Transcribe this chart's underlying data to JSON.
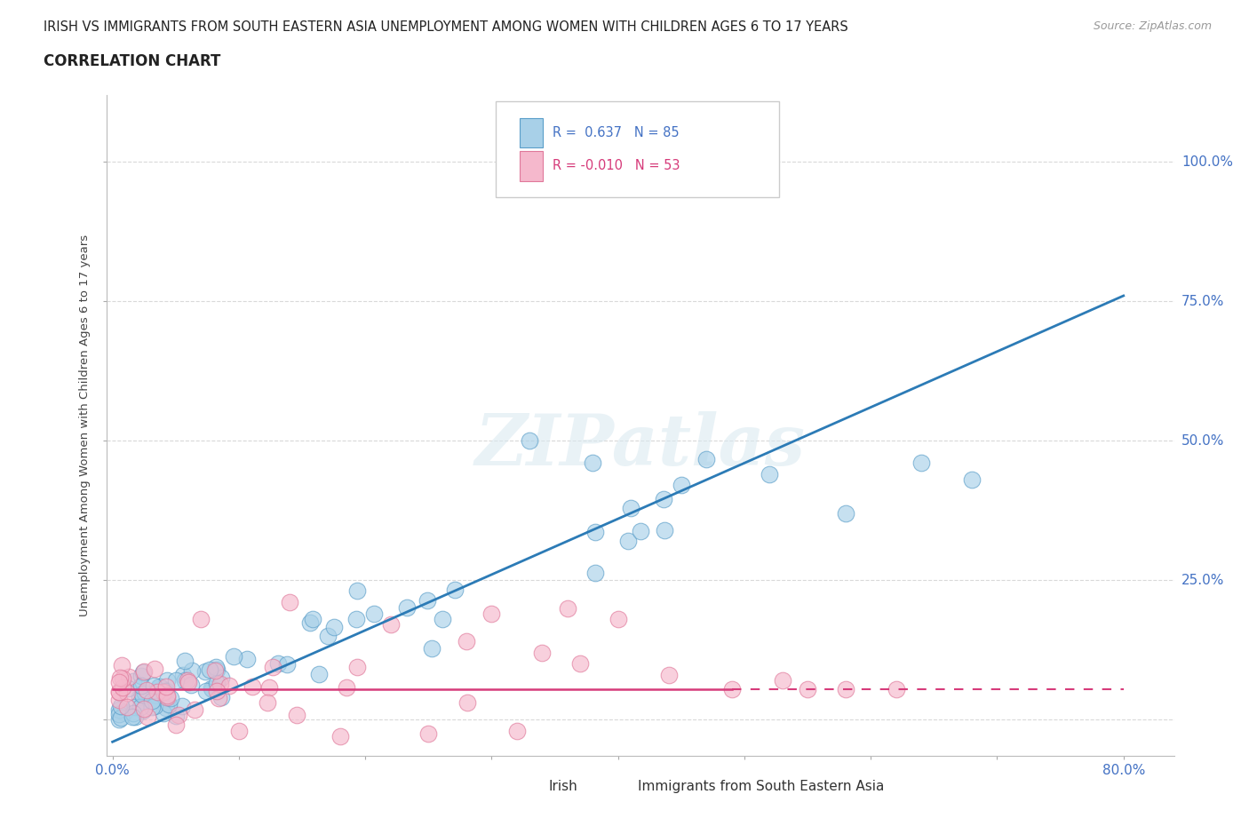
{
  "title_line1": "IRISH VS IMMIGRANTS FROM SOUTH EASTERN ASIA UNEMPLOYMENT AMONG WOMEN WITH CHILDREN AGES 6 TO 17 YEARS",
  "title_line2": "CORRELATION CHART",
  "source_text": "Source: ZipAtlas.com",
  "ylabel": "Unemployment Among Women with Children Ages 6 to 17 years",
  "xlim": [
    -0.005,
    0.84
  ],
  "ylim": [
    -0.065,
    1.12
  ],
  "xtick_positions": [
    0.0,
    0.1,
    0.2,
    0.3,
    0.4,
    0.5,
    0.6,
    0.7,
    0.8
  ],
  "ytick_positions": [
    0.0,
    0.25,
    0.5,
    0.75,
    1.0
  ],
  "ytick_labels": [
    "0.0%",
    "25.0%",
    "50.0%",
    "75.0%",
    "100.0%"
  ],
  "irish_color": "#a8d0e8",
  "irish_edge_color": "#5a9ec9",
  "immigrants_color": "#f5b8cc",
  "immigrants_edge_color": "#e0789a",
  "irish_R": 0.637,
  "irish_N": 85,
  "immigrants_R": -0.01,
  "immigrants_N": 53,
  "irish_line_color": "#2c7bb6",
  "immigrants_line_color": "#d63b7a",
  "background_color": "#ffffff",
  "grid_color": "#d0d0d0",
  "watermark_text": "ZIPatlas",
  "legend_label_irish": "Irish",
  "legend_label_immigrants": "Immigrants from South Eastern Asia",
  "title_color": "#222222",
  "axis_label_color": "#444444",
  "tick_label_color": "#4472c4",
  "irish_line_x0": 0.0,
  "irish_line_y0": -0.04,
  "irish_line_x1": 0.8,
  "irish_line_y1": 0.76,
  "imm_line_y": 0.055,
  "imm_line_solid_x1": 0.49,
  "imm_line_dashed_x1": 0.8
}
